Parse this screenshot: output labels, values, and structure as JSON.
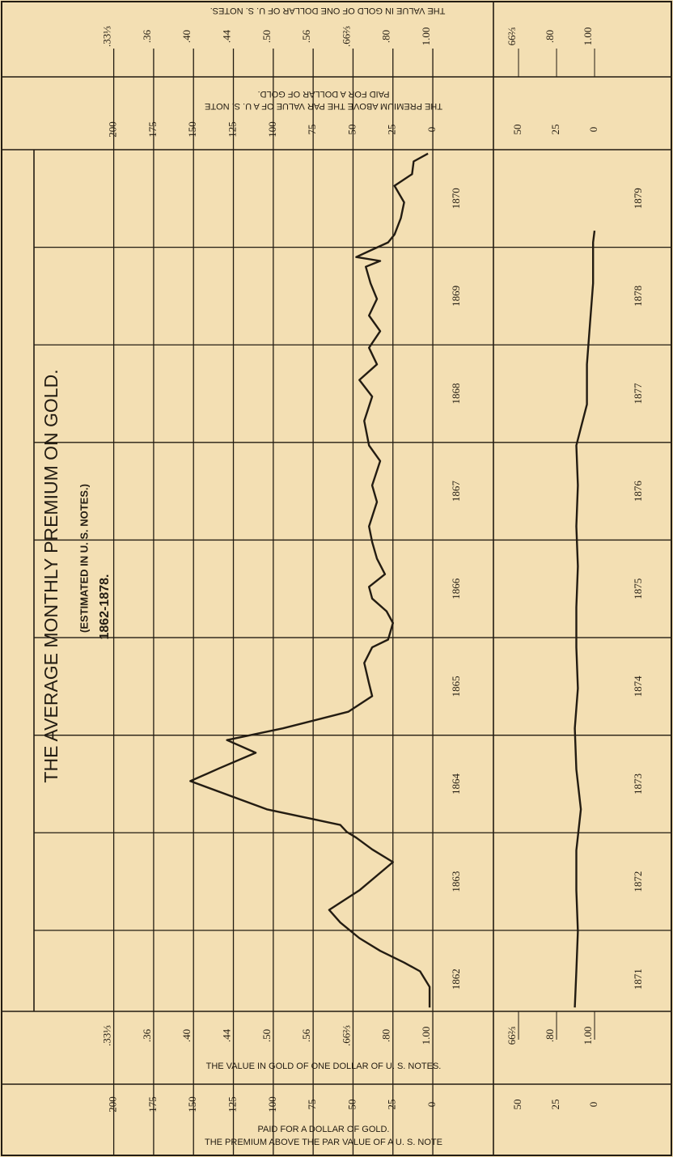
{
  "chart_data": [
    {
      "type": "line",
      "title": "THE AVERAGE MONTHLY PREMIUM ON GOLD.",
      "subtitle": "(ESTIMATED IN U. S. NOTES.)",
      "period": "1862-1878.",
      "gold_axis_title": "THE VALUE IN GOLD OF ONE DOLLAR OF U. S. NOTES.",
      "premium_axis_title": [
        "THE PREMIUM ABOVE THE PAR VALUE OF A U. S. NOTE",
        "PAID FOR A DOLLAR OF GOLD."
      ],
      "x": [
        1862.21,
        1862.42,
        1862.58,
        1862.67,
        1862.79,
        1862.92,
        1863.08,
        1863.21,
        1863.41,
        1863.7,
        1863.83,
        1863.95,
        1864.01,
        1864.08,
        1864.24,
        1864.53,
        1864.66,
        1864.82,
        1864.95,
        1865.07,
        1865.24,
        1865.4,
        1865.53,
        1865.74,
        1865.9,
        1865.98,
        1866.15,
        1866.27,
        1866.4,
        1866.52,
        1866.65,
        1866.81,
        1866.98,
        1867.14,
        1867.39,
        1867.56,
        1867.81,
        1867.97,
        1868.22,
        1868.47,
        1868.64,
        1868.8,
        1868.97,
        1869.14,
        1869.3,
        1869.47,
        1869.63,
        1869.8,
        1869.86,
        1869.9,
        1869.96,
        1870.05,
        1870.13,
        1870.3,
        1870.46,
        1870.63,
        1870.75,
        1870.88,
        1870.96
      ],
      "values": [
        2,
        2,
        8,
        18,
        33,
        46,
        58,
        65,
        46,
        25,
        38,
        48,
        54,
        58,
        104,
        152,
        134,
        111,
        129,
        94,
        53,
        38,
        40,
        43,
        38,
        28,
        25,
        29,
        38,
        40,
        30,
        35,
        38,
        40,
        35,
        38,
        33,
        40,
        43,
        38,
        46,
        35,
        40,
        33,
        40,
        35,
        39,
        42,
        33,
        48,
        40,
        28,
        24,
        20,
        18,
        24,
        13,
        12,
        3
      ],
      "color": "#231c12",
      "xlim": [
        1862.17,
        1871
      ],
      "xticks": [
        1862,
        1863,
        1864,
        1865,
        1866,
        1867,
        1868,
        1869,
        1870
      ],
      "ylim": [
        -38,
        250
      ],
      "yticks": [
        0,
        25,
        50,
        75,
        100,
        125,
        150,
        175,
        200
      ],
      "gold_value_ticks": [
        {
          "value": 200,
          "label": ".33⅓"
        },
        {
          "value": 175,
          "label": ".36"
        },
        {
          "value": 150,
          "label": ".40"
        },
        {
          "value": 125,
          "label": ".44"
        },
        {
          "value": 100,
          "label": ".50"
        },
        {
          "value": 75,
          "label": ".56"
        },
        {
          "value": 50,
          "label": ".66⅔"
        },
        {
          "value": 25,
          "label": ".80"
        },
        {
          "value": 0,
          "label": "1.00"
        }
      ],
      "grid": true
    },
    {
      "type": "line",
      "x": [
        1871.21,
        1871.58,
        1871.99,
        1872.41,
        1872.82,
        1873.24,
        1873.65,
        1874.07,
        1874.48,
        1874.9,
        1875.31,
        1875.73,
        1876.14,
        1876.56,
        1876.97,
        1877.39,
        1877.8,
        1878.22,
        1878.63,
        1879.05,
        1879.17
      ],
      "values": [
        13,
        12,
        11,
        12,
        12,
        9,
        12,
        13,
        11,
        12,
        12,
        11,
        12,
        11,
        12,
        5,
        5,
        3,
        1,
        1,
        0
      ],
      "color": "#231c12",
      "xlim": [
        1871.17,
        1880
      ],
      "xticks": [
        1871,
        1872,
        1873,
        1874,
        1875,
        1876,
        1877,
        1878,
        1879
      ],
      "ylim": [
        -50.5,
        66.5
      ],
      "yticks": [
        50,
        25,
        0
      ],
      "gold_value_ticks": [
        {
          "value": 50,
          "label": "66⅔"
        },
        {
          "value": 25,
          "label": ".80"
        },
        {
          "value": 0,
          "label": "1.00"
        }
      ],
      "grid": false
    }
  ]
}
